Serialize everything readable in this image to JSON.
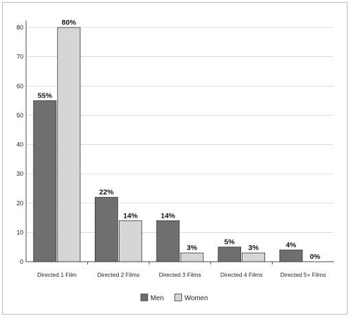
{
  "chart_data": {
    "type": "bar",
    "categories": [
      "Directed 1 Film",
      "Directed 2 Films",
      "Directed 3 Films",
      "Directed 4 Films",
      "Directed 5+ Films"
    ],
    "series": [
      {
        "name": "Men",
        "values": [
          55,
          22,
          14,
          5,
          4
        ],
        "labels": [
          "55%",
          "22%",
          "14%",
          "5%",
          "4%"
        ],
        "color": "#6f6f6f"
      },
      {
        "name": "Women",
        "values": [
          80,
          14,
          3,
          3,
          0
        ],
        "labels": [
          "80%",
          "14%",
          "3%",
          "3%",
          "0%"
        ],
        "color": "#d6d6d6"
      }
    ],
    "ylim": [
      0,
      80
    ],
    "yticks": [
      0,
      10,
      20,
      30,
      40,
      50,
      60,
      70,
      80
    ],
    "grid": true,
    "legend": "bottom-center",
    "title": "",
    "xlabel": "",
    "ylabel": ""
  }
}
